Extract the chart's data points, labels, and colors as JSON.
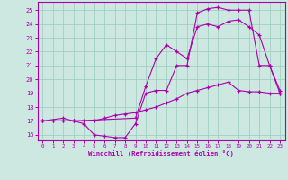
{
  "xlabel": "Windchill (Refroidissement éolien,°C)",
  "xlim": [
    -0.5,
    23.5
  ],
  "ylim": [
    15.6,
    25.6
  ],
  "xticks": [
    0,
    1,
    2,
    3,
    4,
    5,
    6,
    7,
    8,
    9,
    10,
    11,
    12,
    13,
    14,
    15,
    16,
    17,
    18,
    19,
    20,
    21,
    22,
    23
  ],
  "yticks": [
    16,
    17,
    18,
    19,
    20,
    21,
    22,
    23,
    24,
    25
  ],
  "background_color": "#cce8e0",
  "line_color": "#aa00aa",
  "grid_color": "#99ccbb",
  "curve1_x": [
    0,
    1,
    2,
    3,
    4,
    5,
    6,
    7,
    8,
    9,
    10,
    11,
    12,
    13,
    14,
    15,
    16,
    17,
    18,
    19,
    20,
    21,
    22,
    23
  ],
  "curve1_y": [
    17,
    17,
    17,
    17,
    16.8,
    16.0,
    15.9,
    15.8,
    15.8,
    16.8,
    19.0,
    19.2,
    19.2,
    21.0,
    21.0,
    24.8,
    25.1,
    25.2,
    25.0,
    25.0,
    25.0,
    21.0,
    21.0,
    19.0
  ],
  "curve2_x": [
    0,
    2,
    3,
    9,
    10,
    11,
    12,
    13,
    14,
    15,
    16,
    17,
    18,
    19,
    20,
    21,
    22,
    23
  ],
  "curve2_y": [
    17,
    17.2,
    17.0,
    17.2,
    19.5,
    21.5,
    22.5,
    22.0,
    21.5,
    23.8,
    24.0,
    23.8,
    24.2,
    24.3,
    23.8,
    23.2,
    21.0,
    19.2
  ],
  "curve3_x": [
    0,
    1,
    2,
    3,
    4,
    5,
    6,
    7,
    8,
    9,
    10,
    11,
    12,
    13,
    14,
    15,
    16,
    17,
    18,
    19,
    20,
    21,
    22,
    23
  ],
  "curve3_y": [
    17,
    17,
    17,
    17,
    17,
    17,
    17.2,
    17.4,
    17.5,
    17.6,
    17.8,
    18.0,
    18.3,
    18.6,
    19.0,
    19.2,
    19.4,
    19.6,
    19.8,
    19.2,
    19.1,
    19.1,
    19.0,
    19.0
  ]
}
